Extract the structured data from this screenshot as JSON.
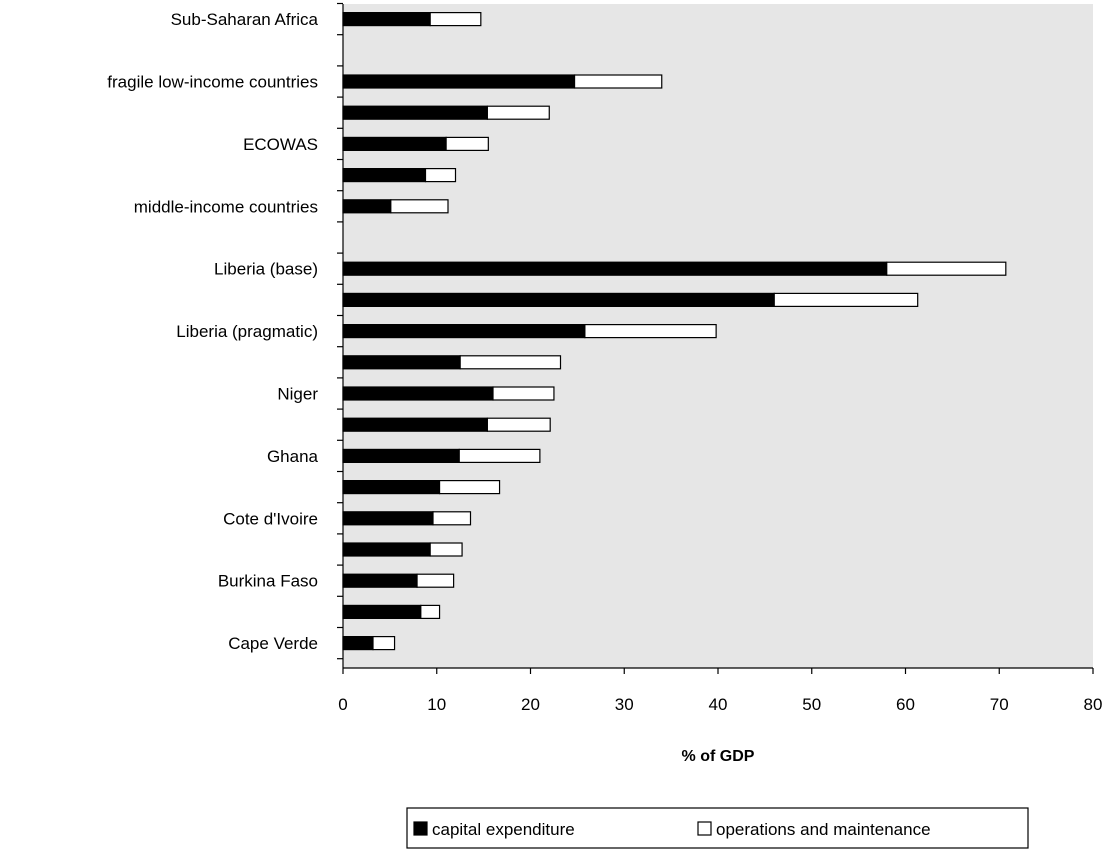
{
  "chart_data": {
    "type": "bar",
    "orientation": "horizontal",
    "stacked": true,
    "title": "",
    "xlabel": "% of GDP",
    "ylabel": "",
    "xlim": [
      0,
      80
    ],
    "xticks": [
      "0",
      "10",
      "20",
      "30",
      "40",
      "50",
      "60",
      "70",
      "80"
    ],
    "grid": false,
    "legend_position": "bottom",
    "categories": [
      "Sub-Saharan Africa",
      "",
      "fragile low-income countries",
      "",
      "ECOWAS",
      "",
      "middle-income countries",
      "",
      "Liberia (base)",
      "",
      "Liberia (pragmatic)",
      "",
      "Niger",
      "",
      "Ghana",
      "",
      "Cote d'Ivoire",
      "",
      "Burkina Faso",
      "",
      "Cape Verde"
    ],
    "series": [
      {
        "name": "capital expenditure",
        "color": "#000000",
        "values": [
          9.3,
          null,
          24.7,
          15.4,
          11.0,
          8.8,
          5.1,
          null,
          58.0,
          46.0,
          25.8,
          12.5,
          16.0,
          15.4,
          12.4,
          10.3,
          9.6,
          9.3,
          7.9,
          8.3,
          3.2
        ]
      },
      {
        "name": "operations and maintenance",
        "color": "#ffffff",
        "values": [
          5.4,
          null,
          9.3,
          6.6,
          4.5,
          3.2,
          6.1,
          null,
          12.7,
          15.3,
          14.0,
          10.7,
          6.5,
          6.7,
          8.6,
          6.4,
          4.0,
          3.4,
          3.9,
          2.0,
          2.3
        ]
      }
    ],
    "plot_background": "#e6e6e6",
    "bar_outline": "#000000"
  }
}
